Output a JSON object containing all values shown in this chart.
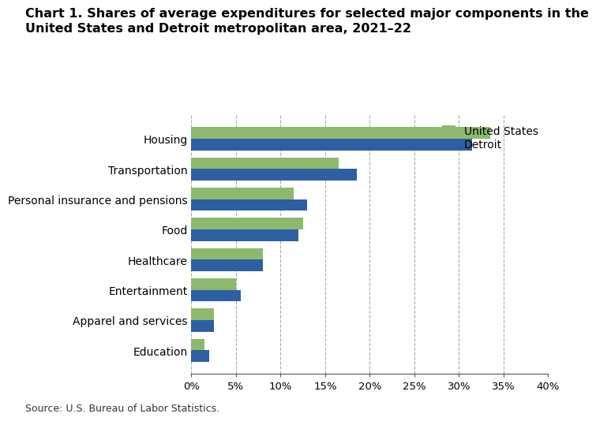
{
  "title_line1": "Chart 1. Shares of average expenditures for selected major components in the",
  "title_line2": "United States and Detroit metropolitan area, 2021–22",
  "categories": [
    "Housing",
    "Transportation",
    "Personal insurance and pensions",
    "Food",
    "Healthcare",
    "Entertainment",
    "Apparel and services",
    "Education"
  ],
  "us_values": [
    33.5,
    16.5,
    11.5,
    12.5,
    8.0,
    5.0,
    2.5,
    1.5
  ],
  "detroit_values": [
    31.5,
    18.5,
    13.0,
    12.0,
    8.0,
    5.5,
    2.5,
    2.0
  ],
  "us_color": "#8db96e",
  "detroit_color": "#2e5fa3",
  "us_label": "United States",
  "detroit_label": "Detroit",
  "xlim": [
    0,
    40
  ],
  "xticks": [
    0,
    5,
    10,
    15,
    20,
    25,
    30,
    35,
    40
  ],
  "source": "Source: U.S. Bureau of Labor Statistics.",
  "background_color": "#ffffff",
  "bar_height": 0.38,
  "title_fontsize": 11.5,
  "tick_fontsize": 9.5,
  "label_fontsize": 10,
  "legend_fontsize": 10
}
